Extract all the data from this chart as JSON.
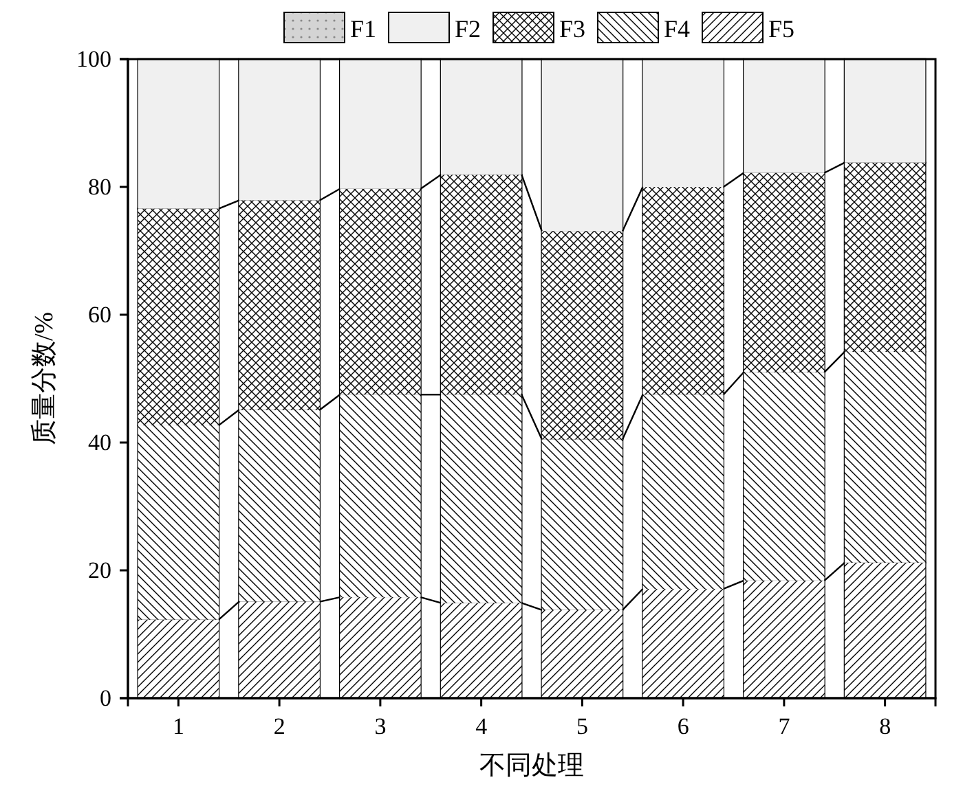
{
  "chart_data": {
    "type": "bar",
    "stacked": true,
    "xlabel": "不同处理",
    "ylabel": "质量分数/%",
    "categories": [
      "1",
      "2",
      "3",
      "4",
      "5",
      "6",
      "7",
      "8"
    ],
    "series": [
      {
        "name": "F5",
        "color": "#ffffff",
        "values": [
          12.3,
          15.1,
          15.8,
          14.9,
          13.8,
          17.1,
          18.4,
          21.2
        ]
      },
      {
        "name": "F4",
        "color": "#ffffff",
        "values": [
          30.4,
          30.0,
          31.7,
          32.6,
          26.7,
          30.4,
          32.6,
          33.0
        ]
      },
      {
        "name": "F3",
        "color": "#ffffff",
        "values": [
          33.9,
          32.8,
          32.2,
          34.4,
          32.6,
          32.5,
          31.2,
          29.6
        ]
      },
      {
        "name": "F2",
        "color": "#f0f0f0",
        "values": [
          23.4,
          22.1,
          20.3,
          18.1,
          26.9,
          20.0,
          17.8,
          16.2
        ]
      },
      {
        "name": "F1",
        "color": "#d4d4d4",
        "values": [
          0,
          0,
          0,
          0,
          0,
          0,
          0,
          0
        ]
      }
    ],
    "ylim": [
      0,
      100
    ],
    "yticks": [
      0,
      20,
      40,
      60,
      80,
      100
    ],
    "legend": "top",
    "grid": false
  }
}
